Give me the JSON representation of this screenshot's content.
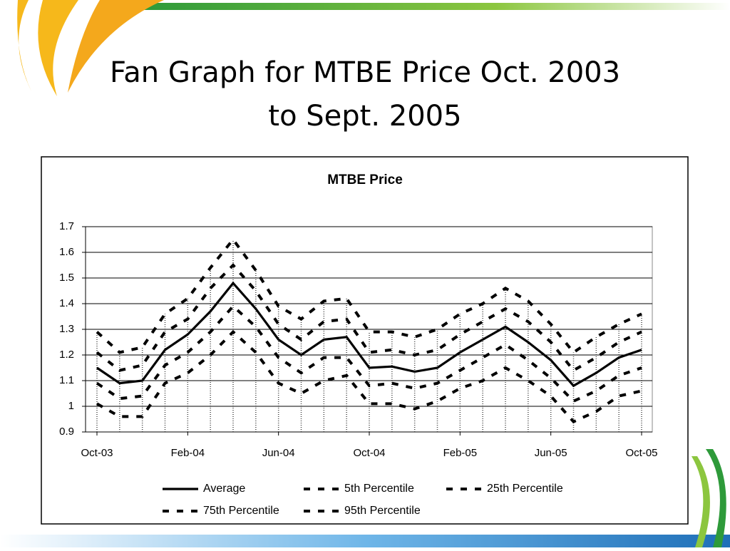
{
  "slide_title": [
    "Fan Graph for MTBE Price Oct. 2003",
    "to Sept. 2005"
  ],
  "chart_data": {
    "type": "line",
    "title": "MTBE Price",
    "categories": [
      "Oct-03",
      null,
      null,
      null,
      "Feb-04",
      null,
      null,
      null,
      "Jun-04",
      null,
      null,
      null,
      "Oct-04",
      null,
      null,
      null,
      "Feb-05",
      null,
      null,
      null,
      "Jun-05",
      null,
      null,
      null,
      "Oct-05"
    ],
    "ylim": [
      0.9,
      1.7
    ],
    "yticks": [
      0.9,
      1,
      1.1,
      1.2,
      1.3,
      1.4,
      1.5,
      1.6,
      1.7
    ],
    "grid": true,
    "drop_lines": true,
    "series": [
      {
        "name": "Average",
        "color": "#000000",
        "line_style": "solid",
        "values": [
          1.15,
          1.09,
          1.1,
          1.22,
          1.28,
          1.37,
          1.48,
          1.38,
          1.26,
          1.2,
          1.26,
          1.27,
          1.15,
          1.155,
          1.135,
          1.15,
          1.21,
          1.26,
          1.31,
          1.25,
          1.18,
          1.08,
          1.13,
          1.19,
          1.22
        ]
      },
      {
        "name": "5th Percentile",
        "color": "#000000",
        "line_style": "dashed",
        "values": [
          1.01,
          0.96,
          0.96,
          1.09,
          1.13,
          1.2,
          1.29,
          1.21,
          1.09,
          1.05,
          1.1,
          1.12,
          1.01,
          1.01,
          0.99,
          1.02,
          1.07,
          1.1,
          1.15,
          1.1,
          1.04,
          0.94,
          0.98,
          1.04,
          1.06
        ]
      },
      {
        "name": "25th Percentile",
        "color": "#000000",
        "line_style": "dashed",
        "values": [
          1.09,
          1.03,
          1.04,
          1.16,
          1.21,
          1.29,
          1.39,
          1.31,
          1.19,
          1.13,
          1.19,
          1.19,
          1.08,
          1.09,
          1.07,
          1.09,
          1.14,
          1.19,
          1.24,
          1.18,
          1.11,
          1.02,
          1.06,
          1.12,
          1.15
        ]
      },
      {
        "name": "75th Percentile",
        "color": "#000000",
        "line_style": "dashed",
        "values": [
          1.21,
          1.14,
          1.16,
          1.29,
          1.34,
          1.46,
          1.55,
          1.45,
          1.32,
          1.26,
          1.33,
          1.34,
          1.21,
          1.22,
          1.2,
          1.22,
          1.28,
          1.33,
          1.38,
          1.33,
          1.25,
          1.14,
          1.19,
          1.25,
          1.29
        ]
      },
      {
        "name": "95th Percentile",
        "color": "#000000",
        "line_style": "dashed",
        "values": [
          1.29,
          1.21,
          1.23,
          1.36,
          1.42,
          1.54,
          1.65,
          1.53,
          1.39,
          1.34,
          1.41,
          1.42,
          1.29,
          1.29,
          1.27,
          1.3,
          1.36,
          1.4,
          1.46,
          1.41,
          1.32,
          1.21,
          1.27,
          1.32,
          1.36
        ]
      }
    ]
  }
}
